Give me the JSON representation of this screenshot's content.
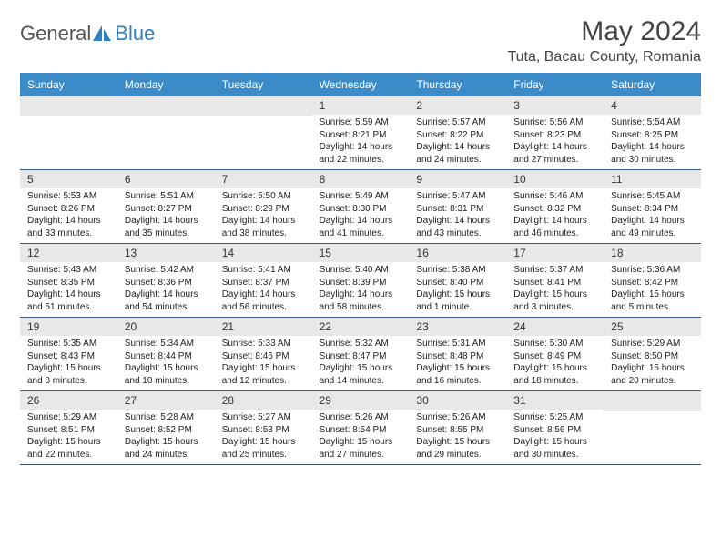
{
  "logo": {
    "text1": "General",
    "text2": "Blue"
  },
  "title": "May 2024",
  "location": "Tuta, Bacau County, Romania",
  "colors": {
    "header_bg": "#3b8bc9",
    "header_text": "#ffffff",
    "date_bg": "#e8e8e8",
    "week_border": "#3b5a7a",
    "logo_gray": "#555555",
    "logo_blue": "#2f7fc1"
  },
  "dayNames": [
    "Sunday",
    "Monday",
    "Tuesday",
    "Wednesday",
    "Thursday",
    "Friday",
    "Saturday"
  ],
  "weeks": [
    [
      null,
      null,
      null,
      {
        "d": "1",
        "sr": "5:59 AM",
        "ss": "8:21 PM",
        "dl": "14 hours and 22 minutes."
      },
      {
        "d": "2",
        "sr": "5:57 AM",
        "ss": "8:22 PM",
        "dl": "14 hours and 24 minutes."
      },
      {
        "d": "3",
        "sr": "5:56 AM",
        "ss": "8:23 PM",
        "dl": "14 hours and 27 minutes."
      },
      {
        "d": "4",
        "sr": "5:54 AM",
        "ss": "8:25 PM",
        "dl": "14 hours and 30 minutes."
      }
    ],
    [
      {
        "d": "5",
        "sr": "5:53 AM",
        "ss": "8:26 PM",
        "dl": "14 hours and 33 minutes."
      },
      {
        "d": "6",
        "sr": "5:51 AM",
        "ss": "8:27 PM",
        "dl": "14 hours and 35 minutes."
      },
      {
        "d": "7",
        "sr": "5:50 AM",
        "ss": "8:29 PM",
        "dl": "14 hours and 38 minutes."
      },
      {
        "d": "8",
        "sr": "5:49 AM",
        "ss": "8:30 PM",
        "dl": "14 hours and 41 minutes."
      },
      {
        "d": "9",
        "sr": "5:47 AM",
        "ss": "8:31 PM",
        "dl": "14 hours and 43 minutes."
      },
      {
        "d": "10",
        "sr": "5:46 AM",
        "ss": "8:32 PM",
        "dl": "14 hours and 46 minutes."
      },
      {
        "d": "11",
        "sr": "5:45 AM",
        "ss": "8:34 PM",
        "dl": "14 hours and 49 minutes."
      }
    ],
    [
      {
        "d": "12",
        "sr": "5:43 AM",
        "ss": "8:35 PM",
        "dl": "14 hours and 51 minutes."
      },
      {
        "d": "13",
        "sr": "5:42 AM",
        "ss": "8:36 PM",
        "dl": "14 hours and 54 minutes."
      },
      {
        "d": "14",
        "sr": "5:41 AM",
        "ss": "8:37 PM",
        "dl": "14 hours and 56 minutes."
      },
      {
        "d": "15",
        "sr": "5:40 AM",
        "ss": "8:39 PM",
        "dl": "14 hours and 58 minutes."
      },
      {
        "d": "16",
        "sr": "5:38 AM",
        "ss": "8:40 PM",
        "dl": "15 hours and 1 minute."
      },
      {
        "d": "17",
        "sr": "5:37 AM",
        "ss": "8:41 PM",
        "dl": "15 hours and 3 minutes."
      },
      {
        "d": "18",
        "sr": "5:36 AM",
        "ss": "8:42 PM",
        "dl": "15 hours and 5 minutes."
      }
    ],
    [
      {
        "d": "19",
        "sr": "5:35 AM",
        "ss": "8:43 PM",
        "dl": "15 hours and 8 minutes."
      },
      {
        "d": "20",
        "sr": "5:34 AM",
        "ss": "8:44 PM",
        "dl": "15 hours and 10 minutes."
      },
      {
        "d": "21",
        "sr": "5:33 AM",
        "ss": "8:46 PM",
        "dl": "15 hours and 12 minutes."
      },
      {
        "d": "22",
        "sr": "5:32 AM",
        "ss": "8:47 PM",
        "dl": "15 hours and 14 minutes."
      },
      {
        "d": "23",
        "sr": "5:31 AM",
        "ss": "8:48 PM",
        "dl": "15 hours and 16 minutes."
      },
      {
        "d": "24",
        "sr": "5:30 AM",
        "ss": "8:49 PM",
        "dl": "15 hours and 18 minutes."
      },
      {
        "d": "25",
        "sr": "5:29 AM",
        "ss": "8:50 PM",
        "dl": "15 hours and 20 minutes."
      }
    ],
    [
      {
        "d": "26",
        "sr": "5:29 AM",
        "ss": "8:51 PM",
        "dl": "15 hours and 22 minutes."
      },
      {
        "d": "27",
        "sr": "5:28 AM",
        "ss": "8:52 PM",
        "dl": "15 hours and 24 minutes."
      },
      {
        "d": "28",
        "sr": "5:27 AM",
        "ss": "8:53 PM",
        "dl": "15 hours and 25 minutes."
      },
      {
        "d": "29",
        "sr": "5:26 AM",
        "ss": "8:54 PM",
        "dl": "15 hours and 27 minutes."
      },
      {
        "d": "30",
        "sr": "5:26 AM",
        "ss": "8:55 PM",
        "dl": "15 hours and 29 minutes."
      },
      {
        "d": "31",
        "sr": "5:25 AM",
        "ss": "8:56 PM",
        "dl": "15 hours and 30 minutes."
      },
      null
    ]
  ],
  "labels": {
    "sunrise": "Sunrise:",
    "sunset": "Sunset:",
    "daylight": "Daylight:"
  }
}
